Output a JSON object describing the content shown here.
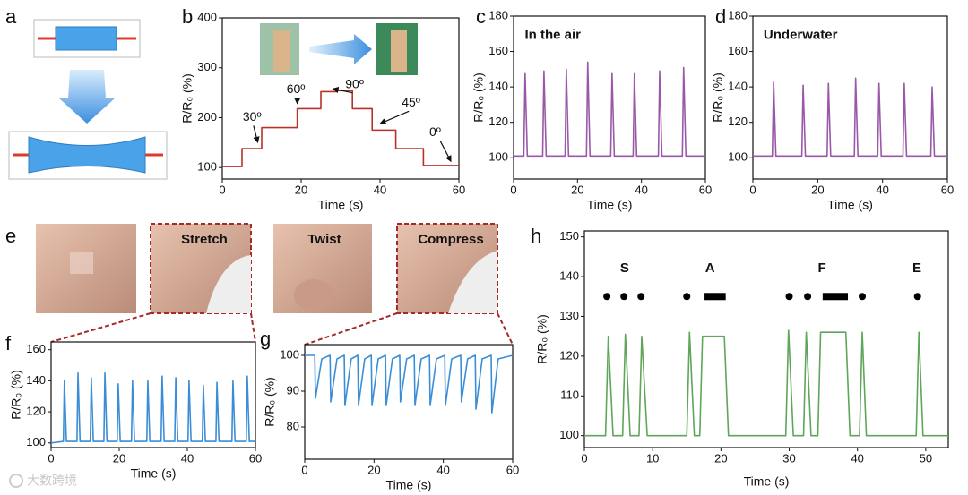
{
  "panel_labels": [
    "a",
    "b",
    "c",
    "d",
    "e",
    "f",
    "g",
    "h"
  ],
  "photo_labels": [
    "Stretch",
    "Twist",
    "Compress"
  ],
  "watermark": "大数跨境",
  "chart_data": [
    {
      "type": "line",
      "xlabel": "Time (s)",
      "ylabel": "R/R₀ (%)",
      "color": "#b83228",
      "xlim": [
        0,
        60
      ],
      "ylim": [
        77,
        400
      ],
      "xticks": [
        0,
        20,
        40,
        60
      ],
      "yticks": [
        100,
        200,
        300,
        400
      ],
      "x": [
        0,
        5,
        5,
        10,
        10,
        19,
        19,
        25,
        25,
        29,
        29,
        33,
        33,
        38,
        38,
        44,
        44,
        51,
        51,
        60
      ],
      "values": [
        102,
        102,
        138,
        138,
        180,
        180,
        218,
        218,
        252,
        252,
        254,
        254,
        218,
        218,
        175,
        175,
        138,
        138,
        104,
        104
      ],
      "annotations": [
        {
          "text": "30º",
          "x": 5.2,
          "y": 200,
          "arrow_to": [
            9,
            150
          ]
        },
        {
          "text": "60º",
          "x": 16.3,
          "y": 256,
          "arrow_to": [
            19,
            228
          ]
        },
        {
          "text": "90º",
          "x": 31.2,
          "y": 266,
          "arrow_to": [
            28,
            258
          ]
        },
        {
          "text": "45º",
          "x": 45.5,
          "y": 229,
          "arrow_to": [
            40,
            188
          ]
        },
        {
          "text": "0º",
          "x": 52.5,
          "y": 170,
          "arrow_to": [
            58,
            112
          ]
        }
      ]
    },
    {
      "type": "line",
      "xlabel": "Time (s)",
      "ylabel": "R/R₀ (%)",
      "color": "#9a58a8",
      "xlim": [
        0,
        60
      ],
      "ylim": [
        88,
        180
      ],
      "xticks": [
        0,
        20,
        40,
        60
      ],
      "yticks": [
        100,
        120,
        140,
        160,
        180
      ],
      "x": [
        0,
        3.2,
        3.6,
        4.3,
        9.1,
        9.5,
        10.2,
        16.1,
        16.5,
        17.2,
        22.8,
        23.2,
        23.9,
        30.4,
        30.8,
        31.5,
        37.4,
        37.8,
        38.5,
        45.3,
        45.7,
        46.4,
        52.8,
        53.2,
        53.9,
        60
      ],
      "values": [
        101,
        101,
        148,
        101,
        101,
        149,
        101,
        101,
        150,
        101,
        101,
        154,
        101,
        101,
        148,
        101,
        101,
        148,
        101,
        101,
        149,
        101,
        101,
        151,
        101,
        101
      ],
      "annotations": [
        {
          "text": "In the air",
          "x": 3.5,
          "y": 169
        }
      ]
    },
    {
      "type": "line",
      "xlabel": "Time (s)",
      "ylabel": "R/R₀ (%)",
      "color": "#9a58a8",
      "xlim": [
        0,
        60
      ],
      "ylim": [
        88,
        180
      ],
      "xticks": [
        0,
        20,
        40,
        60
      ],
      "yticks": [
        100,
        120,
        140,
        160,
        180
      ],
      "x": [
        0,
        6.0,
        6.4,
        7.1,
        15.1,
        15.5,
        16.2,
        22.9,
        23.3,
        24.0,
        31.3,
        31.7,
        32.4,
        38.5,
        38.9,
        39.6,
        46.3,
        46.7,
        47.4,
        54.9,
        55.3,
        56.0,
        60
      ],
      "values": [
        101,
        101,
        143,
        101,
        101,
        141,
        101,
        101,
        142,
        101,
        101,
        145,
        101,
        101,
        142,
        101,
        101,
        142,
        101,
        101,
        140,
        101,
        101
      ],
      "annotations": [
        {
          "text": "Underwater",
          "x": 3.3,
          "y": 169
        }
      ]
    },
    {
      "type": "line",
      "xlabel": "Time (s)",
      "ylabel": "R/R₀ (%)",
      "color": "#3b8ed6",
      "xlim": [
        0,
        60
      ],
      "ylim": [
        97,
        165
      ],
      "xticks": [
        0,
        20,
        40,
        60
      ],
      "yticks": [
        100,
        120,
        140,
        160
      ],
      "x": [
        0,
        3.6,
        3.9,
        4.5,
        7.6,
        7.9,
        8.5,
        11.5,
        11.8,
        12.4,
        15.5,
        15.8,
        16.4,
        19.4,
        19.7,
        20.3,
        23.6,
        23.9,
        24.5,
        28.1,
        28.4,
        29.0,
        32.3,
        32.6,
        33.2,
        36.3,
        36.6,
        37.2,
        40.2,
        40.5,
        41.1,
        44.4,
        44.7,
        45.3,
        48.4,
        48.7,
        49.3,
        53.1,
        53.4,
        54.0,
        57.3,
        57.6,
        58.2,
        60
      ],
      "values": [
        100,
        101,
        140,
        101,
        101,
        145,
        101,
        101,
        142,
        101,
        101,
        145,
        101,
        101,
        138,
        101,
        101,
        140,
        101,
        101,
        140,
        101,
        101,
        143,
        101,
        101,
        142,
        101,
        101,
        140,
        101,
        101,
        137,
        101,
        101,
        139,
        101,
        101,
        140,
        101,
        101,
        143,
        101,
        101
      ]
    },
    {
      "type": "line",
      "xlabel": "Time (s)",
      "ylabel": "R/R₀ (%)",
      "color": "#3b8ed6",
      "xlim": [
        0,
        60
      ],
      "ylim": [
        71,
        103
      ],
      "xticks": [
        0,
        20,
        40,
        60
      ],
      "yticks": [
        80,
        90,
        100
      ],
      "x": [
        0,
        2.9,
        3.1,
        4.9,
        7.3,
        7.5,
        9.3,
        11.4,
        11.6,
        13.4,
        15.3,
        15.5,
        17.3,
        19.2,
        19.4,
        21.2,
        23.3,
        23.5,
        25.3,
        27.4,
        27.6,
        29.4,
        31.6,
        31.8,
        33.6,
        36.0,
        36.2,
        38.0,
        40.4,
        40.6,
        42.4,
        45.0,
        45.2,
        47.0,
        49.2,
        49.4,
        51.2,
        53.8,
        54.0,
        55.8,
        60
      ],
      "values": [
        100,
        100,
        88,
        99,
        100,
        87,
        99,
        100,
        86,
        99,
        100,
        86,
        99,
        100,
        86,
        99,
        100,
        86,
        99,
        100,
        87,
        99,
        100,
        86,
        99,
        100,
        86,
        99,
        100,
        86,
        99,
        100,
        87,
        99,
        100,
        85,
        99,
        100,
        84,
        99,
        100
      ]
    },
    {
      "type": "line",
      "xlabel": "Time (s)",
      "ylabel": "R/R₀ (%)",
      "color": "#5fa55a",
      "xlim": [
        0,
        53.3
      ],
      "ylim": [
        97,
        151.5
      ],
      "xticks": [
        0,
        10,
        20,
        30,
        40,
        50
      ],
      "yticks": [
        100,
        110,
        120,
        130,
        140,
        150
      ],
      "x": [
        0,
        3.1,
        3.5,
        4.2,
        5.6,
        6.0,
        6.7,
        8.0,
        8.4,
        9.2,
        15.0,
        15.4,
        16.1,
        16.9,
        17.3,
        20.5,
        21.1,
        29.5,
        29.9,
        30.6,
        32.1,
        32.5,
        33.2,
        34.2,
        34.6,
        38.3,
        38.9,
        40.3,
        40.7,
        41.3,
        48.6,
        49.0,
        49.6,
        53.3
      ],
      "values": [
        100,
        100,
        125,
        100,
        100,
        125.5,
        100,
        100,
        125,
        100,
        100,
        126,
        100,
        100,
        125,
        125,
        100,
        100,
        126.5,
        100,
        100,
        126,
        100,
        100,
        126,
        126,
        100,
        100,
        126,
        100,
        100,
        126,
        100,
        100
      ],
      "annotations": [
        {
          "text": "S",
          "x": 5.9,
          "y": 142
        },
        {
          "text": "A",
          "x": 18.4,
          "y": 142
        },
        {
          "text": "F",
          "x": 34.8,
          "y": 142
        },
        {
          "text": "E",
          "x": 48.7,
          "y": 142
        }
      ],
      "dots": [
        {
          "x": 3.3,
          "y": 135
        },
        {
          "x": 5.8,
          "y": 135
        },
        {
          "x": 8.3,
          "y": 135
        },
        {
          "x": 15.0,
          "y": 135
        },
        {
          "x": 30.0,
          "y": 135
        },
        {
          "x": 32.7,
          "y": 135
        },
        {
          "x": 40.7,
          "y": 135
        },
        {
          "x": 48.8,
          "y": 135
        }
      ],
      "dashes": [
        {
          "x": [
            17.6,
            20.7
          ],
          "y": 135
        },
        {
          "x": [
            34.9,
            38.6
          ],
          "y": 135
        }
      ]
    }
  ]
}
